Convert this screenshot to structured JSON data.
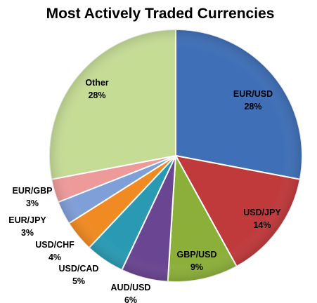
{
  "chart_data": {
    "type": "pie",
    "title": "Most Actively Traded Currencies",
    "slices": [
      {
        "label": "EUR/USD",
        "value": 28,
        "value_label": "28%",
        "color": "#3f6fb7"
      },
      {
        "label": "USD/JPY",
        "value": 14,
        "value_label": "14%",
        "color": "#c0393b"
      },
      {
        "label": "GBP/USD",
        "value": 9,
        "value_label": "9%",
        "color": "#8caf3a"
      },
      {
        "label": "AUD/USD",
        "value": 6,
        "value_label": "6%",
        "color": "#6a4591"
      },
      {
        "label": "USD/CAD",
        "value": 5,
        "value_label": "5%",
        "color": "#2a9ab3"
      },
      {
        "label": "USD/CHF",
        "value": 4,
        "value_label": "4%",
        "color": "#f08a22"
      },
      {
        "label": "EUR/JPY",
        "value": 3,
        "value_label": "3%",
        "color": "#7f9fd8"
      },
      {
        "label": "EUR/GBP",
        "value": 3,
        "value_label": "3%",
        "color": "#ee9a9a"
      },
      {
        "label": "Other",
        "value": 28,
        "value_label": "28%",
        "color": "#c5dc95"
      }
    ],
    "start_angle": "12 o'clock",
    "direction": "clockwise",
    "legend": "none"
  }
}
